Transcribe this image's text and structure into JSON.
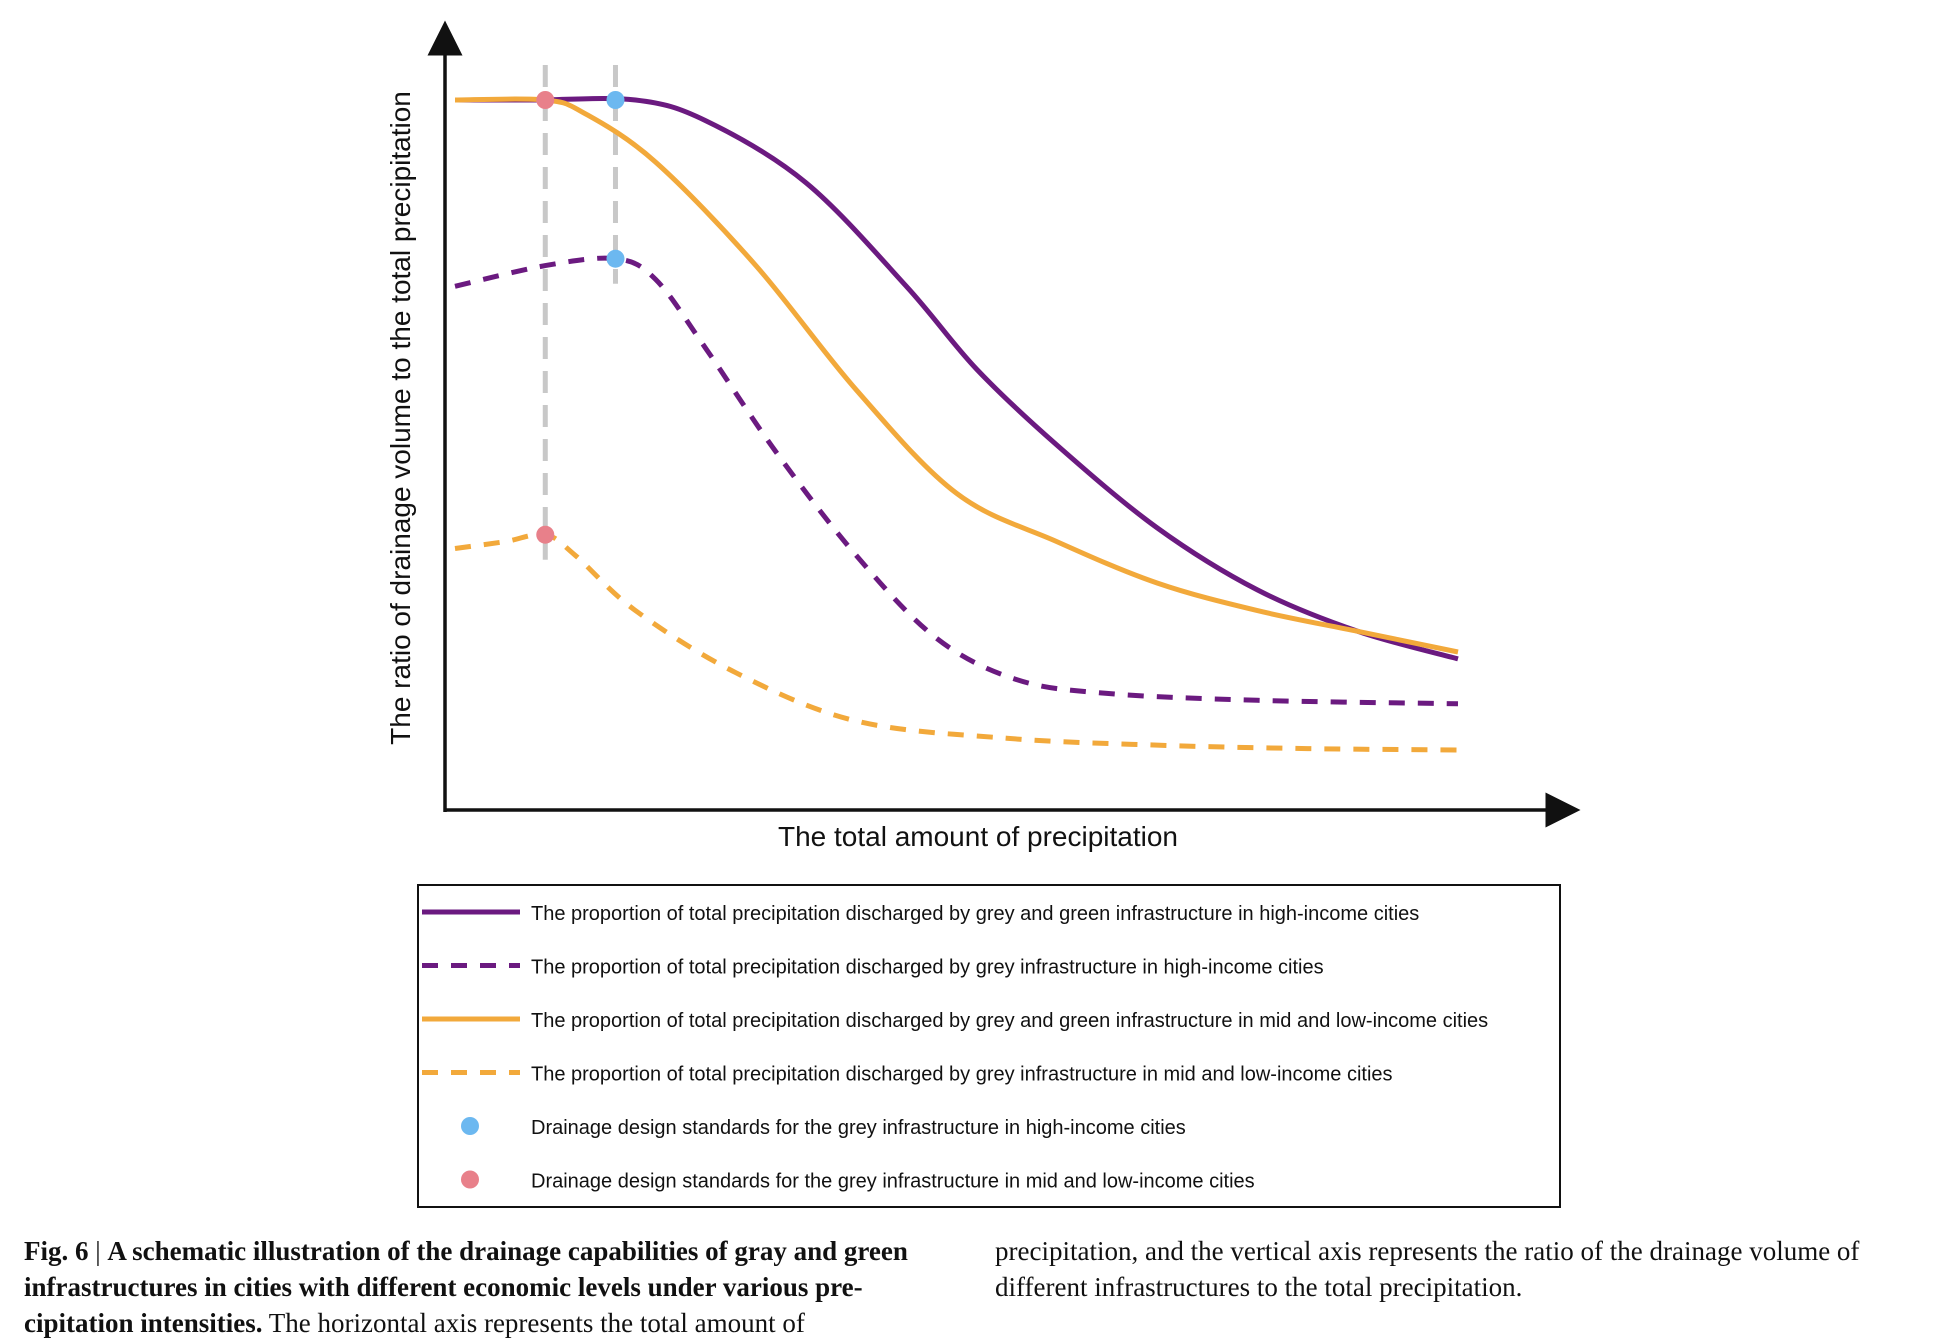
{
  "chart_data": {
    "type": "line",
    "xlabel": "The total amount of precipitation",
    "ylabel": "The ratio of drainage volume to the total precipitation",
    "grid": false,
    "colors": {
      "purple": "#6b1a80",
      "orange": "#f2a93b",
      "blue": "#6cb8f0",
      "pink": "#e8808a",
      "guide": "#c8c8c8"
    },
    "series": [
      {
        "name": "The proportion of total precipitation discharged by grey and green infrastructure in high-income cities",
        "style": "solid",
        "color": "#6b1a80",
        "points": [
          [
            0,
            1.0
          ],
          [
            0.08,
            1.0
          ],
          [
            0.18,
            1.0
          ],
          [
            0.25,
            0.97
          ],
          [
            0.35,
            0.88
          ],
          [
            0.45,
            0.73
          ],
          [
            0.52,
            0.61
          ],
          [
            0.6,
            0.5
          ],
          [
            0.7,
            0.38
          ],
          [
            0.8,
            0.29
          ],
          [
            0.9,
            0.23
          ],
          [
            1.0,
            0.19
          ]
        ]
      },
      {
        "name": "The proportion of total precipitation discharged by grey infrastructure in high-income cities",
        "style": "dashed",
        "color": "#6b1a80",
        "points": [
          [
            0,
            0.73
          ],
          [
            0.09,
            0.76
          ],
          [
            0.16,
            0.77
          ],
          [
            0.2,
            0.74
          ],
          [
            0.25,
            0.64
          ],
          [
            0.32,
            0.49
          ],
          [
            0.4,
            0.34
          ],
          [
            0.48,
            0.22
          ],
          [
            0.56,
            0.16
          ],
          [
            0.65,
            0.14
          ],
          [
            0.8,
            0.13
          ],
          [
            1.0,
            0.125
          ]
        ]
      },
      {
        "name": "The proportion of total precipitation discharged by grey and green infrastructure in mid and low-income cities",
        "style": "solid",
        "color": "#f2a93b",
        "points": [
          [
            0,
            1.0
          ],
          [
            0.09,
            1.0
          ],
          [
            0.13,
            0.98
          ],
          [
            0.2,
            0.91
          ],
          [
            0.3,
            0.76
          ],
          [
            0.4,
            0.58
          ],
          [
            0.5,
            0.43
          ],
          [
            0.6,
            0.36
          ],
          [
            0.7,
            0.3
          ],
          [
            0.8,
            0.26
          ],
          [
            0.9,
            0.23
          ],
          [
            1.0,
            0.2
          ]
        ]
      },
      {
        "name": "The proportion of total precipitation discharged by grey infrastructure in mid and low-income cities",
        "style": "dashed",
        "color": "#f2a93b",
        "points": [
          [
            0,
            0.35
          ],
          [
            0.05,
            0.36
          ],
          [
            0.09,
            0.37
          ],
          [
            0.12,
            0.34
          ],
          [
            0.18,
            0.26
          ],
          [
            0.28,
            0.17
          ],
          [
            0.4,
            0.1
          ],
          [
            0.55,
            0.075
          ],
          [
            0.7,
            0.065
          ],
          [
            0.85,
            0.06
          ],
          [
            1.0,
            0.058
          ]
        ]
      }
    ],
    "markers": [
      {
        "name": "Drainage design standards for the grey infrastructure in high-income cities",
        "color": "#6cb8f0",
        "points": [
          [
            0.16,
            1.0
          ],
          [
            0.16,
            0.77
          ]
        ]
      },
      {
        "name": "Drainage design standards for the grey infrastructure in mid and low-income cities",
        "color": "#e8808a",
        "points": [
          [
            0.09,
            1.0
          ],
          [
            0.09,
            0.37
          ]
        ]
      }
    ],
    "guide_lines_x": [
      0.09,
      0.16
    ]
  },
  "caption": {
    "label": "Fig. 6",
    "separator": " | ",
    "title": "A schematic illustration of the drainage capabilities of gray and green infrastructures in cities with different economic levels under various pre-cipitation intensities.",
    "body": " The horizontal axis represents the total amount of precipitation, and the vertical axis represents the ratio of the drainage volume of different infrastructures to the total precipitation."
  }
}
